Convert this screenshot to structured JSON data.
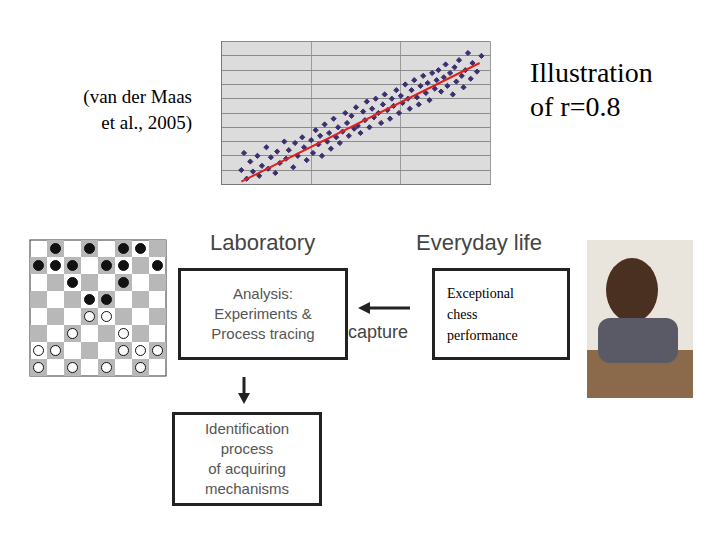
{
  "citation": {
    "lines": [
      "(van der Maas",
      "et al., 2005)"
    ]
  },
  "caption": {
    "lines": [
      "Illustration",
      "of r=0.8"
    ]
  },
  "chart_data": {
    "type": "scatter",
    "xlim": [
      0,
      3
    ],
    "ylim": [
      0,
      10
    ],
    "xticks": [
      0,
      1,
      2,
      3
    ],
    "yticks": [
      0,
      1,
      2,
      3,
      4,
      5,
      6,
      7,
      8,
      9,
      10
    ],
    "grid": true,
    "tick_labels": false,
    "series": [
      {
        "type": "scatter",
        "color": "#3b2f6e",
        "marker": "diamond",
        "x": [
          0.22,
          0.25,
          0.28,
          0.32,
          0.35,
          0.4,
          0.42,
          0.45,
          0.5,
          0.52,
          0.55,
          0.6,
          0.62,
          0.65,
          0.7,
          0.72,
          0.75,
          0.8,
          0.82,
          0.85,
          0.9,
          0.92,
          0.95,
          1.0,
          1.02,
          1.05,
          1.08,
          1.1,
          1.12,
          1.15,
          1.18,
          1.2,
          1.22,
          1.25,
          1.28,
          1.3,
          1.32,
          1.35,
          1.38,
          1.4,
          1.42,
          1.45,
          1.48,
          1.5,
          1.52,
          1.55,
          1.58,
          1.6,
          1.62,
          1.65,
          1.68,
          1.7,
          1.72,
          1.75,
          1.78,
          1.8,
          1.82,
          1.85,
          1.88,
          1.9,
          1.92,
          1.95,
          1.98,
          2.0,
          2.02,
          2.05,
          2.08,
          2.1,
          2.12,
          2.15,
          2.18,
          2.2,
          2.22,
          2.25,
          2.28,
          2.3,
          2.32,
          2.35,
          2.38,
          2.4,
          2.42,
          2.45,
          2.48,
          2.5,
          2.52,
          2.55,
          2.58,
          2.6,
          2.62,
          2.65,
          2.68,
          2.7,
          2.72,
          2.75,
          2.78,
          2.8,
          2.85,
          2.9
        ],
        "values": [
          1.0,
          2.2,
          0.4,
          1.6,
          0.9,
          2.0,
          0.6,
          1.3,
          2.6,
          1.1,
          1.9,
          0.8,
          2.3,
          1.5,
          3.0,
          1.8,
          2.4,
          1.2,
          2.9,
          2.0,
          3.3,
          2.6,
          1.7,
          3.1,
          2.2,
          3.8,
          2.8,
          3.4,
          2.0,
          4.2,
          3.0,
          3.6,
          2.5,
          4.6,
          3.3,
          4.0,
          2.9,
          3.7,
          5.0,
          4.3,
          3.4,
          4.8,
          3.9,
          5.4,
          4.1,
          3.6,
          5.1,
          4.5,
          5.8,
          4.0,
          5.3,
          4.7,
          6.0,
          5.0,
          4.3,
          5.6,
          6.3,
          5.2,
          4.6,
          6.0,
          5.5,
          6.6,
          5.0,
          6.2,
          5.7,
          7.0,
          6.0,
          5.3,
          6.6,
          7.3,
          6.1,
          5.6,
          6.9,
          7.6,
          6.4,
          7.1,
          5.9,
          7.8,
          6.7,
          7.3,
          8.0,
          6.5,
          7.5,
          8.4,
          6.9,
          7.8,
          6.3,
          8.2,
          7.2,
          8.7,
          7.6,
          6.8,
          8.0,
          9.2,
          7.4,
          8.5,
          7.9,
          9.0
        ]
      },
      {
        "type": "line",
        "color": "#e02020",
        "line_style": "solid",
        "x": [
          0.22,
          2.88
        ],
        "values": [
          0.2,
          8.5
        ]
      }
    ]
  },
  "diagram": {
    "headers": [
      "Laboratory",
      "Everyday life"
    ],
    "nodes": [
      {
        "lines": [
          "Analysis:",
          "Experiments &",
          "Process tracing"
        ]
      },
      {
        "lines": [
          "Exceptional",
          "chess",
          "performance"
        ]
      },
      {
        "lines": [
          "Identification",
          "process",
          "of acquiring",
          "mechanisms"
        ]
      }
    ],
    "edges": [
      {
        "from": 1,
        "to": 0,
        "label": "capture"
      },
      {
        "from": 0,
        "to": 2
      }
    ]
  }
}
